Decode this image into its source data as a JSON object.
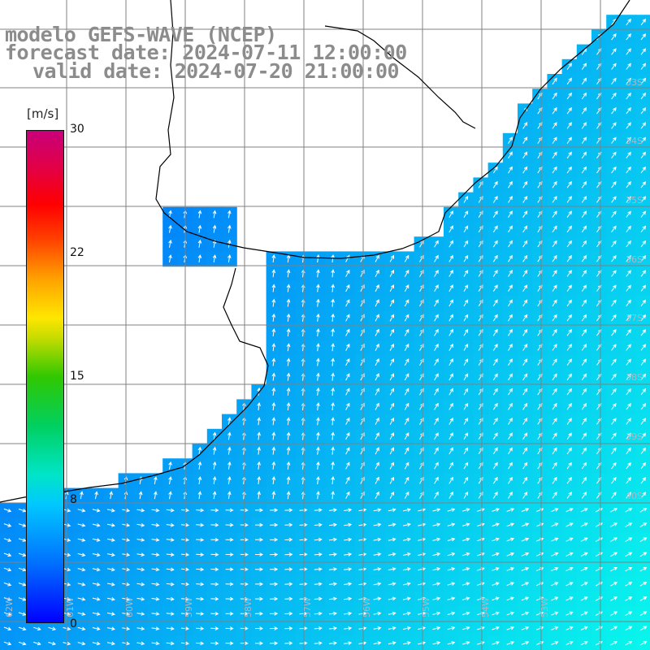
{
  "title": {
    "line1": "modelo GEFS-WAVE (NCEP)",
    "line2": "forecast date: 2024-07-11 12:00:00",
    "line3": "valid date: 2024-07-20 21:00:00"
  },
  "colorbar": {
    "units": "[m/s]",
    "ticks": [
      "30",
      "22",
      "15",
      "8",
      "0"
    ],
    "range": [
      0,
      30
    ]
  },
  "lat_labels": [
    "33S",
    "34S",
    "35S",
    "36S",
    "37S",
    "38S",
    "39S",
    "40S"
  ],
  "lon_labels": [
    "62W",
    "61W",
    "60W",
    "59W",
    "58W",
    "57W",
    "56W",
    "55W",
    "54W",
    "53W"
  ],
  "colors": {
    "land": "#ffffff",
    "grid": "#808080",
    "coast": "#000000",
    "arrow": "#ffffff",
    "title": "#8c8c8c"
  }
}
